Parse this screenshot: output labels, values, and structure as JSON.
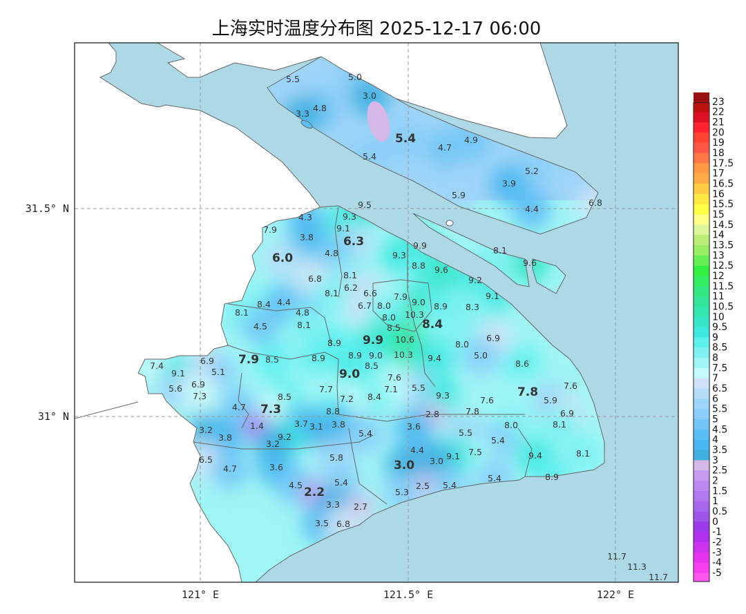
{
  "title": "上海实时温度分布图 2025-12-17 06:00",
  "axes": {
    "x_ticks": [
      "121° E",
      "121.5° E",
      "122° E"
    ],
    "y_ticks": [
      "31.5° N",
      "31° N"
    ],
    "grid": true
  },
  "map_colors": {
    "water": "#add8e6",
    "outside_land": "#ffffff",
    "boundary": "#666666"
  },
  "colorbar": {
    "ticks": [
      "-5",
      "-4",
      "-3",
      "-2",
      "-1",
      "0",
      "0.5",
      "1",
      "1.5",
      "2",
      "2.5",
      "3",
      "3.5",
      "4",
      "4.5",
      "5",
      "5.5",
      "6",
      "6.5",
      "7",
      "7.5",
      "8",
      "8.5",
      "9",
      "9.5",
      "10",
      "10.5",
      "11",
      "11.5",
      "12",
      "12.5",
      "13",
      "13.5",
      "14",
      "14.5",
      "15",
      "15.5",
      "16",
      "16.5",
      "17",
      "17.5",
      "18",
      "19",
      "20",
      "21",
      "22",
      "23"
    ],
    "colors": [
      "#ff55ee",
      "#f53ef0",
      "#e633f0",
      "#cc33ee",
      "#b030ee",
      "#9a3ae8",
      "#9f55ea",
      "#a866ec",
      "#b077ee",
      "#bb88f0",
      "#c79af2",
      "#d6b8e8",
      "#3fb0e0",
      "#4ab8f0",
      "#5cbef5",
      "#72c6f7",
      "#88cef8",
      "#9dd4f8",
      "#b3ddf8",
      "#cfe2f7",
      "#c4fafa",
      "#a0f5f5",
      "#7ef2f2",
      "#5ef0ee",
      "#3ee8e0",
      "#35e6c8",
      "#35e6b0",
      "#33e69a",
      "#33e880",
      "#33ee60",
      "#33f040",
      "#66ee55",
      "#99ee66",
      "#bbee77",
      "#ddf599",
      "#ffff88",
      "#ffff44",
      "#ffe844",
      "#ffcc44",
      "#ffaa44",
      "#ff9944",
      "#ff7744",
      "#ff5544",
      "#ff4433",
      "#ff2233",
      "#dd1122",
      "#bb1111",
      "#991111"
    ]
  },
  "stations": [
    {
      "value": "5.5"
    },
    {
      "value": "5.0"
    },
    {
      "value": "3.0"
    },
    {
      "value": "4.8"
    },
    {
      "value": "3.3"
    },
    {
      "value": "5.4",
      "district_mean": true
    },
    {
      "value": "4.7"
    },
    {
      "value": "4.9"
    },
    {
      "value": "5.4"
    },
    {
      "value": "5.2"
    },
    {
      "value": "3.9"
    },
    {
      "value": "5.9"
    },
    {
      "value": "4.4"
    },
    {
      "value": "6.8"
    },
    {
      "value": "8.1"
    },
    {
      "value": "9.6"
    },
    {
      "value": "9.5"
    },
    {
      "value": "9.3"
    },
    {
      "value": "4.3"
    },
    {
      "value": "9.1"
    },
    {
      "value": "7.9"
    },
    {
      "value": "3.8"
    },
    {
      "value": "6.3",
      "district_mean": true
    },
    {
      "value": "4.8"
    },
    {
      "value": "9.9"
    },
    {
      "value": "9.3"
    },
    {
      "value": "8.8"
    },
    {
      "value": "6.0",
      "district_mean": true
    },
    {
      "value": "9.6"
    },
    {
      "value": "8.1"
    },
    {
      "value": "6.8"
    },
    {
      "value": "9.2"
    },
    {
      "value": "6.2"
    },
    {
      "value": "8.1"
    },
    {
      "value": "9.1"
    },
    {
      "value": "6.6"
    },
    {
      "value": "6.7"
    },
    {
      "value": "8.0"
    },
    {
      "value": "7.9"
    },
    {
      "value": "9.0"
    },
    {
      "value": "8.9"
    },
    {
      "value": "8.3"
    },
    {
      "value": "8.4"
    },
    {
      "value": "4.4"
    },
    {
      "value": "8.1"
    },
    {
      "value": "4.8"
    },
    {
      "value": "10.3"
    },
    {
      "value": "8.1"
    },
    {
      "value": "8.0"
    },
    {
      "value": "8.5"
    },
    {
      "value": "8.4",
      "district_mean": true
    },
    {
      "value": "4.5"
    },
    {
      "value": "6.9"
    },
    {
      "value": "9.9",
      "district_mean": true
    },
    {
      "value": "10.6"
    },
    {
      "value": "8.9"
    },
    {
      "value": "8.0"
    },
    {
      "value": "8.9"
    },
    {
      "value": "9.0"
    },
    {
      "value": "10.3"
    },
    {
      "value": "5.0"
    },
    {
      "value": "9.4"
    },
    {
      "value": "8.6"
    },
    {
      "value": "7.4"
    },
    {
      "value": "6.9"
    },
    {
      "value": "7.9",
      "district_mean": true
    },
    {
      "value": "8.5"
    },
    {
      "value": "8.9"
    },
    {
      "value": "9.1"
    },
    {
      "value": "5.1"
    },
    {
      "value": "9.0",
      "district_mean": true
    },
    {
      "value": "8.5"
    },
    {
      "value": "7.6"
    },
    {
      "value": "7.6"
    },
    {
      "value": "5.6"
    },
    {
      "value": "6.9"
    },
    {
      "value": "5.5"
    },
    {
      "value": "7.7"
    },
    {
      "value": "7.1"
    },
    {
      "value": "7.8",
      "district_mean": true
    },
    {
      "value": "7.3"
    },
    {
      "value": "8.4"
    },
    {
      "value": "9.3"
    },
    {
      "value": "7.6"
    },
    {
      "value": "5.9"
    },
    {
      "value": "7.2"
    },
    {
      "value": "8.5"
    },
    {
      "value": "7.3",
      "district_mean": true
    },
    {
      "value": "4.7"
    },
    {
      "value": "7.8"
    },
    {
      "value": "8.8"
    },
    {
      "value": "6.9"
    },
    {
      "value": "2.8"
    },
    {
      "value": "3.1"
    },
    {
      "value": "3.8"
    },
    {
      "value": "3.7"
    },
    {
      "value": "3.6"
    },
    {
      "value": "1.4"
    },
    {
      "value": "9.2"
    },
    {
      "value": "8.0"
    },
    {
      "value": "8.1"
    },
    {
      "value": "3.2"
    },
    {
      "value": "3.8"
    },
    {
      "value": "5.4"
    },
    {
      "value": "5.5"
    },
    {
      "value": "3.2"
    },
    {
      "value": "5.4"
    },
    {
      "value": "4.4"
    },
    {
      "value": "7.5"
    },
    {
      "value": "9.1"
    },
    {
      "value": "3.0"
    },
    {
      "value": "3.0",
      "district_mean": true
    },
    {
      "value": "9.4"
    },
    {
      "value": "8.1"
    },
    {
      "value": "6.5"
    },
    {
      "value": "5.8"
    },
    {
      "value": "4.7"
    },
    {
      "value": "3.6"
    },
    {
      "value": "5.4"
    },
    {
      "value": "4.5"
    },
    {
      "value": "8.9"
    },
    {
      "value": "5.4"
    },
    {
      "value": "2.5"
    },
    {
      "value": "5.4"
    },
    {
      "value": "2.2",
      "district_mean": true
    },
    {
      "value": "5.3"
    },
    {
      "value": "3.3"
    },
    {
      "value": "2.7"
    },
    {
      "value": "3.5"
    },
    {
      "value": "6.8"
    },
    {
      "value": "11.7"
    },
    {
      "value": "11.3"
    },
    {
      "value": "11.7"
    }
  ]
}
